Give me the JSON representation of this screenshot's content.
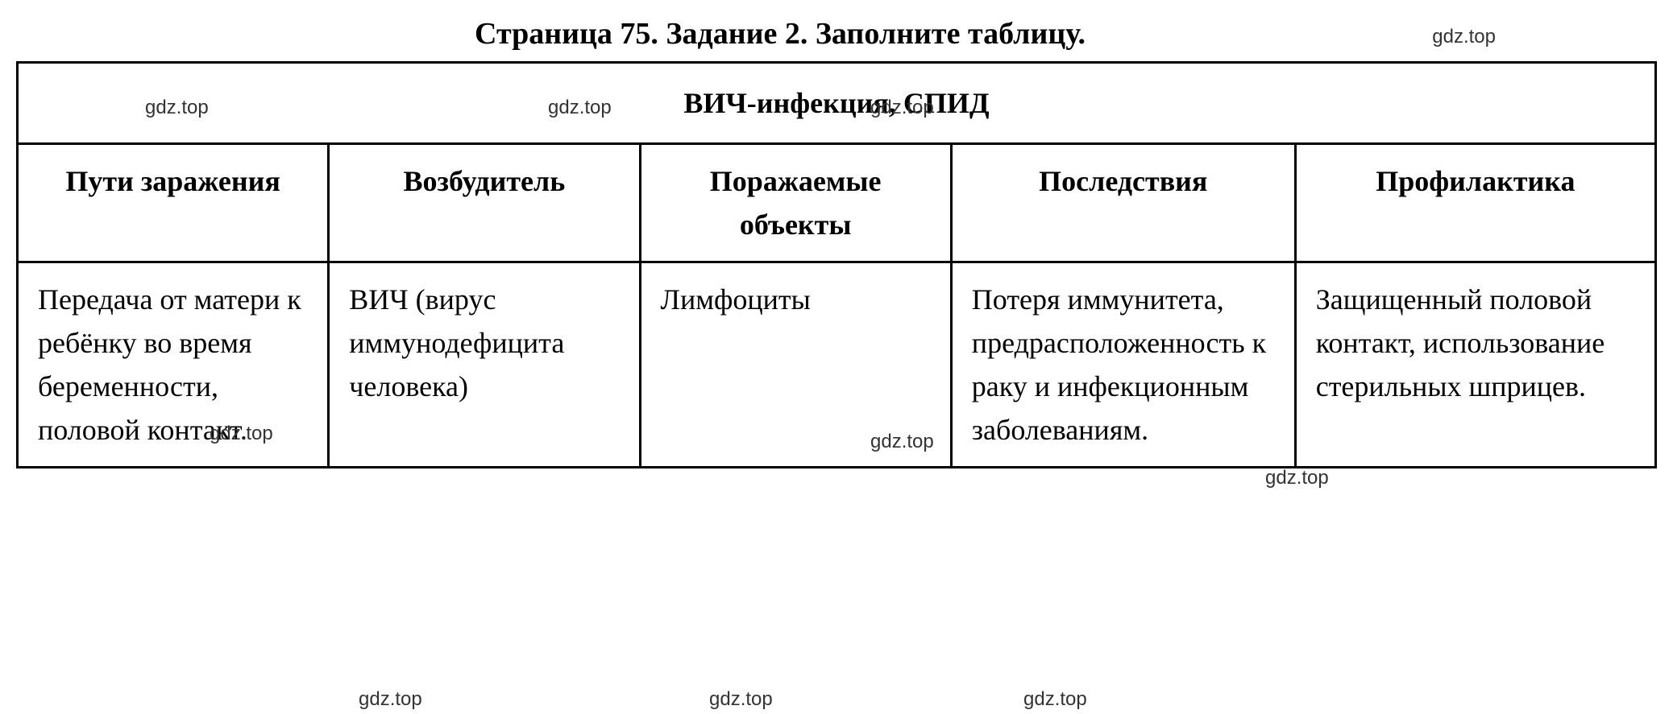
{
  "page": {
    "title": "Страница 75. Задание 2. Заполните таблицу.",
    "watermark_text": "gdz.top"
  },
  "table": {
    "title": "ВИЧ-инфекция, СПИД",
    "columns": [
      "Пути заражения",
      "Возбудитель",
      "Поражаемые объекты",
      "Последствия",
      "Профилактика"
    ],
    "rows": [
      [
        "Передача от матери к ребёнку во время беременности, половой контакт.",
        "ВИЧ (вирус иммунодефицита человека)",
        "Лимфоциты",
        "Потеря иммунитета, предрасположенность к раку и инфекционным заболеваниям.",
        "Защищенный половой контакт, использование стерильных шприцев."
      ]
    ],
    "border_color": "#000000",
    "background_color": "#ffffff",
    "text_color": "#000000",
    "title_fontsize": 38,
    "header_fontsize": 36,
    "cell_fontsize": 36,
    "watermark_fontsize": 24,
    "watermark_color": "#333333"
  }
}
